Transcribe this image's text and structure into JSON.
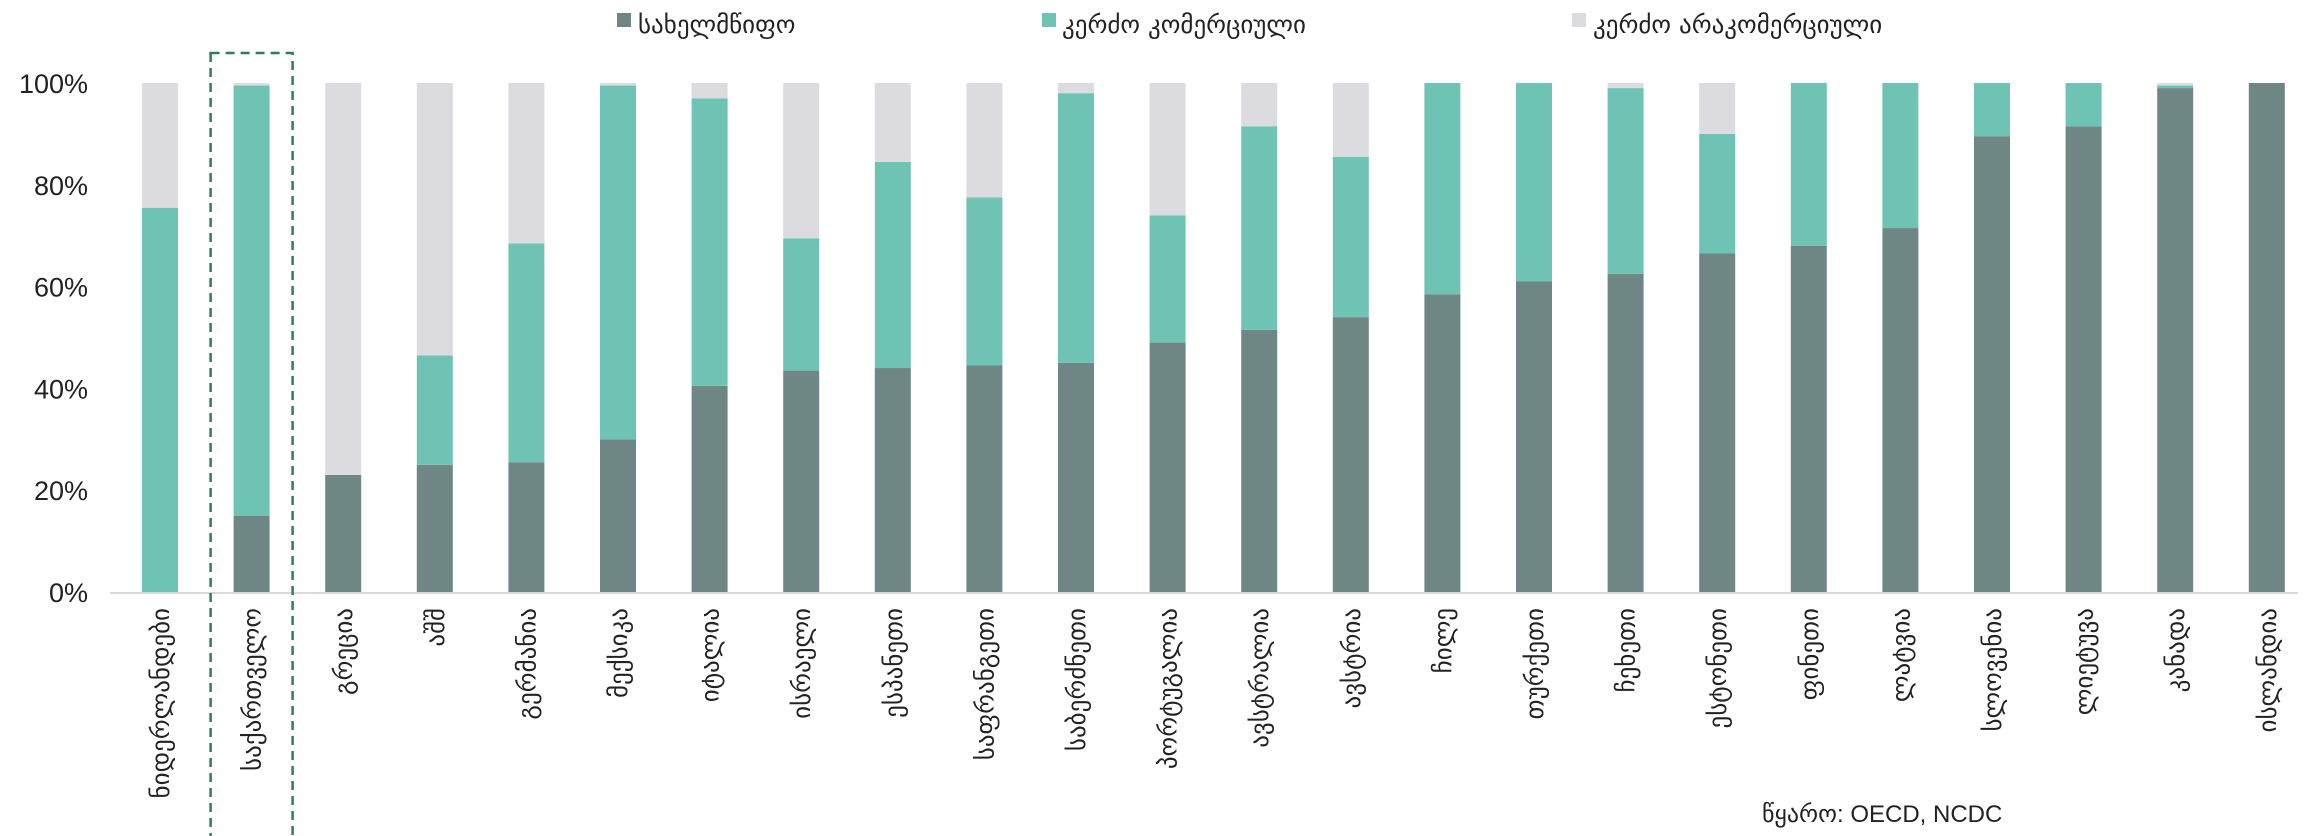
{
  "source_text": "წყარო: OECD, NCDC",
  "chart_data": {
    "type": "bar",
    "stacked": true,
    "categories": [
      "ნიდერლანდები",
      "საქართველო",
      "გრეცია",
      "აშშ",
      "გერმანია",
      "მექსიკა",
      "იტალია",
      "ისრაელი",
      "ესპანეთი",
      "საფრანგეთი",
      "საბერძნეთი",
      "პორტუგალია",
      "ავსტრალია",
      "ავსტრია",
      "ჩილე",
      "თურქეთი",
      "ჩეხეთი",
      "ესტონეთი",
      "ფინეთი",
      "ლატვია",
      "სლოვენია",
      "ლიეტუვა",
      "კანადა",
      "ისლანდია"
    ],
    "series": [
      {
        "name": "სახელმწიფო",
        "color": "#6e8784",
        "values": [
          0,
          15,
          23,
          25,
          25.5,
          30,
          40.5,
          43.5,
          44,
          44.5,
          45,
          49,
          51.5,
          54,
          58.5,
          61,
          62.5,
          66.5,
          68,
          71.5,
          89.5,
          91.5,
          99,
          100
        ]
      },
      {
        "name": "კერძო კომერციული",
        "color": "#6fc3b5",
        "values": [
          75.5,
          84.5,
          0,
          21.5,
          43,
          69.5,
          56.5,
          26,
          40.5,
          33,
          53,
          25,
          40,
          31.5,
          41.5,
          39,
          36.5,
          23.5,
          32,
          28.5,
          10.5,
          8.5,
          0.5,
          0
        ]
      },
      {
        "name": "კერძო არაკომერციული",
        "color": "#dcdbe0",
        "values": [
          24.5,
          0.5,
          77,
          53.5,
          31.5,
          0.5,
          3,
          30.5,
          15.5,
          22.5,
          2,
          26,
          8.5,
          14.5,
          0,
          0,
          1,
          10,
          0,
          0,
          0,
          0,
          0.5,
          0
        ]
      }
    ],
    "ylim": [
      0,
      100
    ],
    "yticks": [
      "0%",
      "20%",
      "40%",
      "60%",
      "80%",
      "100%"
    ],
    "highlight_category": "საქართველო",
    "legend_position": "top",
    "grid": false
  }
}
